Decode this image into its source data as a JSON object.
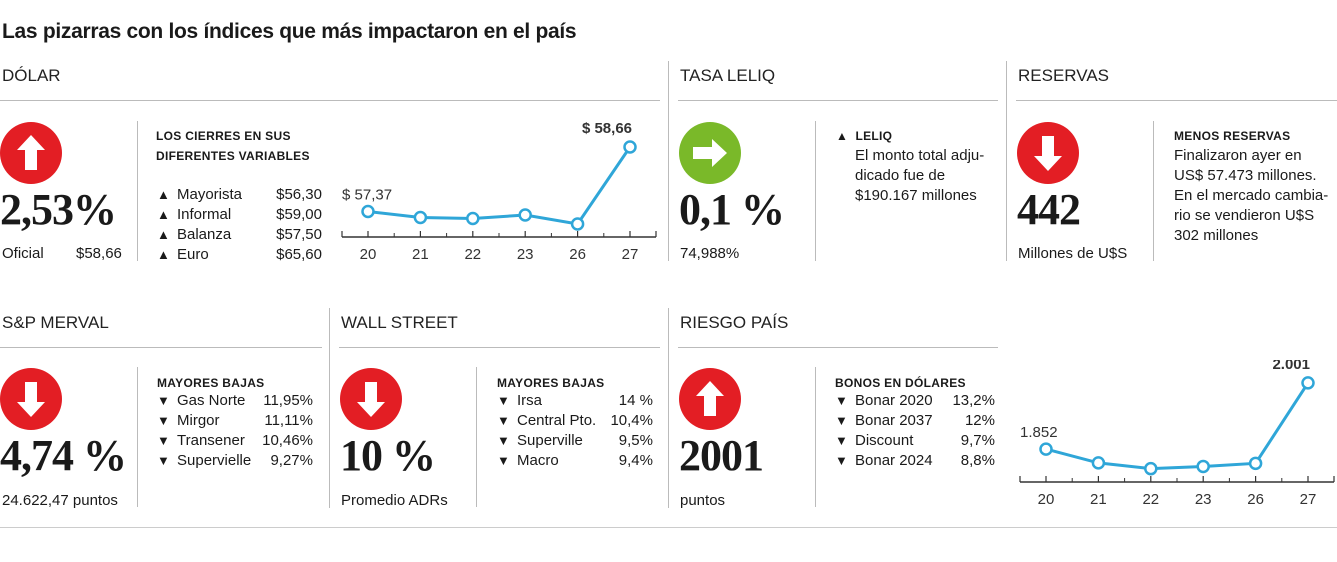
{
  "title": "Las pizarras con los índices que más impactaron en el país",
  "colors": {
    "up": "#e31e24",
    "down": "#e31e24",
    "flat": "#7ab929",
    "line": "#2fa6d8"
  },
  "dolar": {
    "label": "DÓLAR",
    "icon": "arrow-up-icon",
    "value": "2,53%",
    "sub_label": "Oficial",
    "sub_value": "$58,66",
    "header_line1": "LOS CIERRES EN SUS",
    "header_line2": "DIFERENTES VARIABLES",
    "rows": [
      {
        "mark": "▲",
        "name": "Mayorista",
        "value": "$56,30"
      },
      {
        "mark": "▲",
        "name": "Informal",
        "value": "$59,00"
      },
      {
        "mark": "▲",
        "name": "Balanza",
        "value": "$57,50"
      },
      {
        "mark": "▲",
        "name": "Euro",
        "value": "$65,60"
      }
    ]
  },
  "leliq": {
    "label": "TASA LELIQ",
    "icon": "arrow-right-icon",
    "value": "0,1 %",
    "sub_label": "74,988%",
    "header": "LELIQ",
    "mark": "▲",
    "text_lines": [
      "El monto total adju-",
      "dicado fue de",
      "$190.167 millones"
    ]
  },
  "reservas": {
    "label": "RESERVAS",
    "icon": "arrow-down-icon",
    "value": "442",
    "sub_label": "Millones de U$S",
    "header": "MENOS RESERVAS",
    "text_lines": [
      "Finalizaron ayer en",
      "US$ 57.473 millones.",
      "En el mercado cambia-",
      "rio se vendieron U$S",
      "302 millones"
    ]
  },
  "merval": {
    "label": "S&P MERVAL",
    "icon": "arrow-down-icon",
    "value": "4,74 %",
    "sub_label": "24.622,47 puntos",
    "header": "MAYORES BAJAS",
    "rows": [
      {
        "mark": "▼",
        "name": "Gas Norte",
        "value": "11,95%"
      },
      {
        "mark": "▼",
        "name": "Mirgor",
        "value": "11,11%"
      },
      {
        "mark": "▼",
        "name": "Transener",
        "value": "10,46%"
      },
      {
        "mark": "▼",
        "name": "Supervielle",
        "value": "9,27%"
      }
    ]
  },
  "wallstreet": {
    "label": "WALL STREET",
    "icon": "arrow-down-icon",
    "value": "10 %",
    "sub_label": "Promedio ADRs",
    "header": "MAYORES BAJAS",
    "rows": [
      {
        "mark": "▼",
        "name": "Irsa",
        "value": "14 %"
      },
      {
        "mark": "▼",
        "name": "Central Pto.",
        "value": "10,4%"
      },
      {
        "mark": "▼",
        "name": "Superville",
        "value": "9,5%"
      },
      {
        "mark": "▼",
        "name": "Macro",
        "value": "9,4%"
      }
    ]
  },
  "riesgo": {
    "label": "RIESGO PAÍS",
    "icon": "arrow-up-icon",
    "value": "2001",
    "sub_label": "puntos",
    "header": "BONOS EN DÓLARES",
    "rows": [
      {
        "mark": "▼",
        "name": "Bonar 2020",
        "value": "13,2%"
      },
      {
        "mark": "▼",
        "name": "Bonar 2037",
        "value": "12%"
      },
      {
        "mark": "▼",
        "name": "Discount",
        "value": "9,7%"
      },
      {
        "mark": "▼",
        "name": "Bonar 2024",
        "value": "8,8%"
      }
    ]
  },
  "chart_data": [
    {
      "type": "line",
      "categories": [
        "20",
        "21",
        "22",
        "23",
        "26",
        "27"
      ],
      "values": [
        57.37,
        57.25,
        57.23,
        57.3,
        57.12,
        58.66
      ],
      "data_labels": [
        {
          "index": 0,
          "text": "$ 57,37"
        },
        {
          "index": 5,
          "text": "$ 58,66"
        }
      ],
      "ylim": [
        56.8,
        59.0
      ],
      "grid": false
    },
    {
      "type": "line",
      "categories": [
        "20",
        "21",
        "22",
        "23",
        "26",
        "27"
      ],
      "values": [
        1852,
        1821,
        1808,
        1813,
        1820,
        2001
      ],
      "data_labels": [
        {
          "index": 0,
          "text": "1.852"
        },
        {
          "index": 5,
          "text": "2.001"
        }
      ],
      "ylim": [
        1760,
        2030
      ],
      "grid": false
    }
  ]
}
